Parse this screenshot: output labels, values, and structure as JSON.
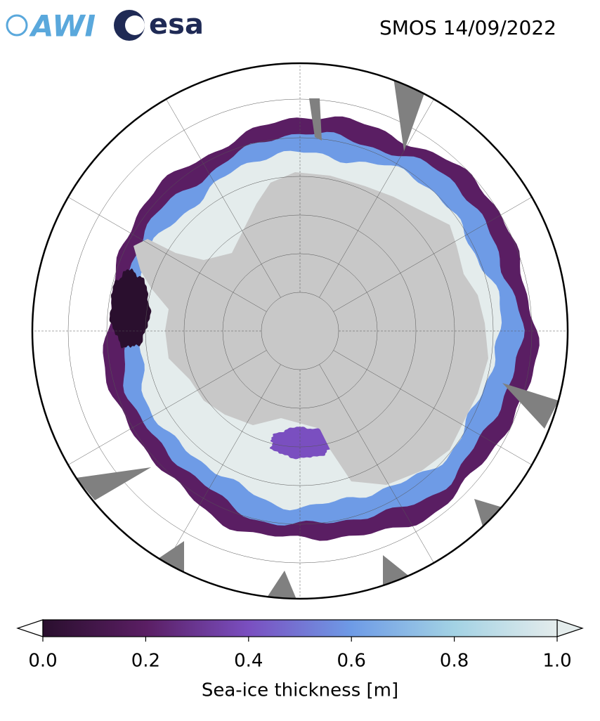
{
  "logos": {
    "awi": "AWI",
    "esa": "esa"
  },
  "title": "SMOS 14/09/2022",
  "colorbar": {
    "label": "Sea-ice thickness [m]",
    "range": [
      0,
      1
    ],
    "colors": [
      "#2a0f2e",
      "#5a1e63",
      "#7a4fc0",
      "#6e9be6",
      "#a3d2e4",
      "#e4ecec"
    ],
    "ticks": [
      {
        "value": 0,
        "label": "0.0"
      },
      {
        "value": 0.2,
        "label": "0.2"
      },
      {
        "value": 0.4,
        "label": "0.4"
      },
      {
        "value": 0.6,
        "label": "0.6"
      },
      {
        "value": 0.8,
        "label": "0.8"
      },
      {
        "value": 1,
        "label": "1.0"
      }
    ]
  }
}
